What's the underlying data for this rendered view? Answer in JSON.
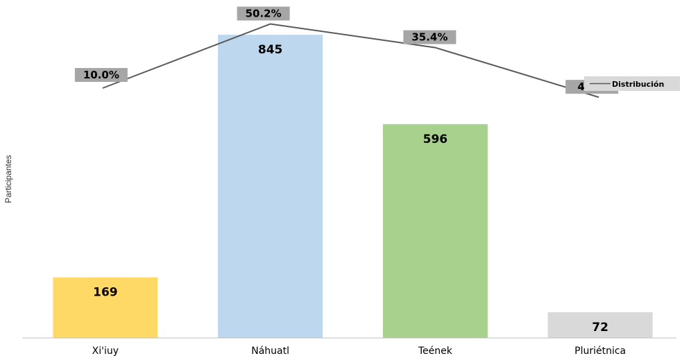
{
  "chart_data": {
    "type": "bar",
    "categories": [
      "Xi'iuy",
      "Náhuatl",
      "Teének",
      "Pluriétnica"
    ],
    "series": [
      {
        "values": [
          169,
          845,
          596,
          72
        ],
        "colors": [
          "#FFD966",
          "#BDD7EE",
          "#A9D18E",
          "#D9D9D9"
        ]
      },
      {
        "name": "Distribución",
        "type": "line",
        "values": [
          10.0,
          50.2,
          35.4,
          4.3
        ],
        "labels": [
          "10.0%",
          "50.2%",
          "35.4%",
          "4.3%"
        ],
        "color": "#595959"
      }
    ],
    "bar_labels": [
      "169",
      "845",
      "596",
      "72"
    ],
    "ylabel": "Participantes",
    "ylim": [
      0,
      1000
    ],
    "y2lim": [
      -55,
      55
    ],
    "grid": false,
    "legend": {
      "position": "right",
      "entries": [
        "Distribución"
      ]
    },
    "label_box_color": "#A6A6A6",
    "legend_box_color": "#D9D9D9"
  }
}
